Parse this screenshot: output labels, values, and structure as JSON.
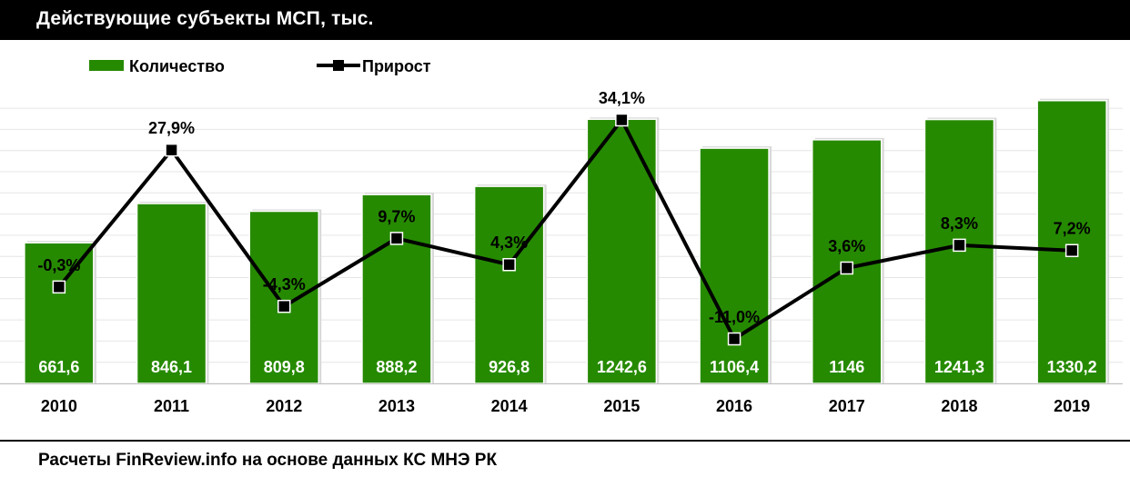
{
  "title": "Действующие субъекты МСП, тыс.",
  "source": "Расчеты FinReview.info на основе данных КС МНЭ РК",
  "colors": {
    "bar": "#268a00",
    "line": "#000000",
    "grid": "#e6e6e6"
  },
  "chart_data": {
    "type": "bar",
    "title": "Действующие субъекты МСП, тыс.",
    "categories": [
      "2010",
      "2011",
      "2012",
      "2013",
      "2014",
      "2015",
      "2016",
      "2017",
      "2018",
      "2019"
    ],
    "series": [
      {
        "name": "Количество",
        "type": "bar",
        "values": [
          661.6,
          846.1,
          809.8,
          888.2,
          926.8,
          1242.6,
          1106.4,
          1146,
          1241.3,
          1330.2
        ],
        "labels": [
          "661,6",
          "846,1",
          "809,8",
          "888,2",
          "926,8",
          "1242,6",
          "1106,4",
          "1146",
          "1241,3",
          "1330,2"
        ]
      },
      {
        "name": "Прирост",
        "type": "line",
        "values": [
          -0.3,
          27.9,
          -4.3,
          9.7,
          4.3,
          34.1,
          -11.0,
          3.6,
          8.3,
          7.2
        ],
        "labels": [
          "-0,3%",
          "27,9%",
          "-4,3%",
          "9,7%",
          "4,3%",
          "34,1%",
          "-11,0%",
          "3,6%",
          "8,3%",
          "7,2%"
        ]
      }
    ],
    "y_left_range": [
      0,
      1400
    ],
    "y_right_range": [
      -15,
      40
    ],
    "legend": "top-left",
    "grid": true
  }
}
